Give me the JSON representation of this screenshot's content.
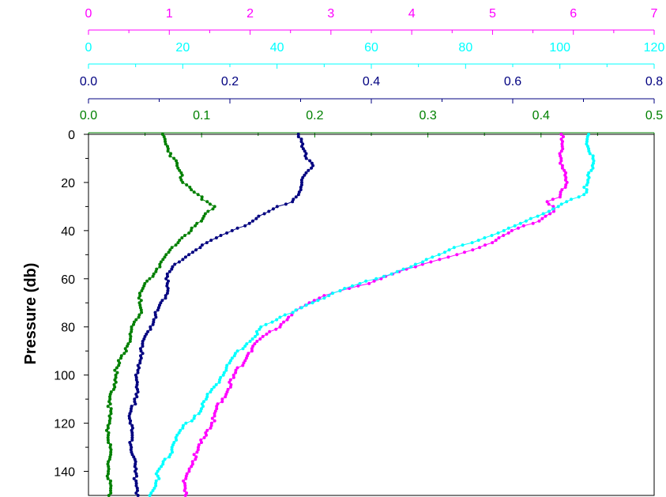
{
  "chart_data": {
    "type": "line",
    "title": "",
    "ylabel": "Pressure (db)",
    "yticks": [
      "0",
      "20",
      "40",
      "60",
      "80",
      "100",
      "120",
      "140"
    ],
    "ylim": [
      0,
      150
    ],
    "y_inverted": true,
    "x_axes": [
      {
        "name": "magenta",
        "color": "#ff00ff",
        "xlim": [
          0,
          7
        ],
        "tick_labels": [
          "0",
          "1",
          "2",
          "3",
          "4",
          "5",
          "6",
          "7"
        ]
      },
      {
        "name": "cyan",
        "color": "#00ffff",
        "xlim": [
          0,
          120
        ],
        "tick_labels": [
          "0",
          "20",
          "40",
          "60",
          "80",
          "100",
          "120"
        ]
      },
      {
        "name": "navy",
        "color": "#000080",
        "xlim": [
          0,
          0.8
        ],
        "tick_labels": [
          "0.0",
          "0.2",
          "0.4",
          "0.6",
          "0.8"
        ]
      },
      {
        "name": "green",
        "color": "#008000",
        "xlim": [
          0,
          0.5
        ],
        "tick_labels": [
          "0.0",
          "0.1",
          "0.2",
          "0.3",
          "0.4",
          "0.5"
        ]
      }
    ],
    "series": [
      {
        "axis": 0,
        "color": "#ff00ff",
        "points": [
          [
            5.85,
            0
          ],
          [
            5.85,
            10
          ],
          [
            5.9,
            20
          ],
          [
            5.85,
            26
          ],
          [
            5.7,
            28
          ],
          [
            5.75,
            32
          ],
          [
            5.55,
            36
          ],
          [
            5.25,
            40
          ],
          [
            5.05,
            44
          ],
          [
            4.75,
            48
          ],
          [
            4.35,
            52
          ],
          [
            3.95,
            56
          ],
          [
            3.45,
            62
          ],
          [
            3.0,
            66
          ],
          [
            2.75,
            70
          ],
          [
            2.5,
            75
          ],
          [
            2.35,
            80
          ],
          [
            2.1,
            86
          ],
          [
            1.95,
            92
          ],
          [
            1.85,
            98
          ],
          [
            1.75,
            104
          ],
          [
            1.65,
            110
          ],
          [
            1.55,
            118
          ],
          [
            1.45,
            124
          ],
          [
            1.35,
            132
          ],
          [
            1.25,
            138
          ],
          [
            1.2,
            144
          ],
          [
            1.2,
            150
          ]
        ]
      },
      {
        "axis": 1,
        "color": "#00ffff",
        "points": [
          [
            106,
            0
          ],
          [
            106,
            5
          ],
          [
            107,
            10
          ],
          [
            106,
            20
          ],
          [
            105,
            25
          ],
          [
            101,
            28
          ],
          [
            98,
            32
          ],
          [
            93,
            36
          ],
          [
            89,
            39
          ],
          [
            84,
            43
          ],
          [
            78,
            47
          ],
          [
            72,
            52
          ],
          [
            64,
            58
          ],
          [
            56,
            63
          ],
          [
            51,
            67
          ],
          [
            46,
            71
          ],
          [
            41,
            76
          ],
          [
            37,
            80
          ],
          [
            34,
            86
          ],
          [
            31,
            92
          ],
          [
            29,
            98
          ],
          [
            27,
            104
          ],
          [
            25,
            110
          ],
          [
            23,
            116
          ],
          [
            20,
            122
          ],
          [
            18,
            128
          ],
          [
            17,
            134
          ],
          [
            15,
            140
          ],
          [
            14,
            146
          ],
          [
            13,
            150
          ]
        ]
      },
      {
        "axis": 2,
        "color": "#000080",
        "points": [
          [
            0.3,
            0
          ],
          [
            0.3,
            5
          ],
          [
            0.31,
            10
          ],
          [
            0.32,
            13
          ],
          [
            0.3,
            18
          ],
          [
            0.3,
            24
          ],
          [
            0.29,
            28
          ],
          [
            0.27,
            30
          ],
          [
            0.24,
            34
          ],
          [
            0.22,
            38
          ],
          [
            0.19,
            42
          ],
          [
            0.16,
            46
          ],
          [
            0.14,
            50
          ],
          [
            0.12,
            55
          ],
          [
            0.11,
            60
          ],
          [
            0.11,
            66
          ],
          [
            0.1,
            72
          ],
          [
            0.09,
            78
          ],
          [
            0.08,
            84
          ],
          [
            0.075,
            90
          ],
          [
            0.07,
            96
          ],
          [
            0.07,
            102
          ],
          [
            0.065,
            110
          ],
          [
            0.06,
            118
          ],
          [
            0.06,
            126
          ],
          [
            0.065,
            134
          ],
          [
            0.065,
            140
          ],
          [
            0.07,
            146
          ],
          [
            0.07,
            150
          ]
        ]
      },
      {
        "axis": 3,
        "color": "#008000",
        "points": [
          [
            0.065,
            0
          ],
          [
            0.07,
            5
          ],
          [
            0.075,
            10
          ],
          [
            0.08,
            15
          ],
          [
            0.085,
            20
          ],
          [
            0.095,
            24
          ],
          [
            0.1,
            27
          ],
          [
            0.11,
            30
          ],
          [
            0.105,
            33
          ],
          [
            0.1,
            36
          ],
          [
            0.09,
            40
          ],
          [
            0.08,
            44
          ],
          [
            0.07,
            50
          ],
          [
            0.06,
            56
          ],
          [
            0.05,
            62
          ],
          [
            0.045,
            68
          ],
          [
            0.045,
            74
          ],
          [
            0.04,
            80
          ],
          [
            0.035,
            86
          ],
          [
            0.03,
            92
          ],
          [
            0.025,
            98
          ],
          [
            0.022,
            104
          ],
          [
            0.02,
            110
          ],
          [
            0.018,
            118
          ],
          [
            0.018,
            126
          ],
          [
            0.018,
            134
          ],
          [
            0.018,
            142
          ],
          [
            0.018,
            150
          ]
        ]
      }
    ]
  }
}
